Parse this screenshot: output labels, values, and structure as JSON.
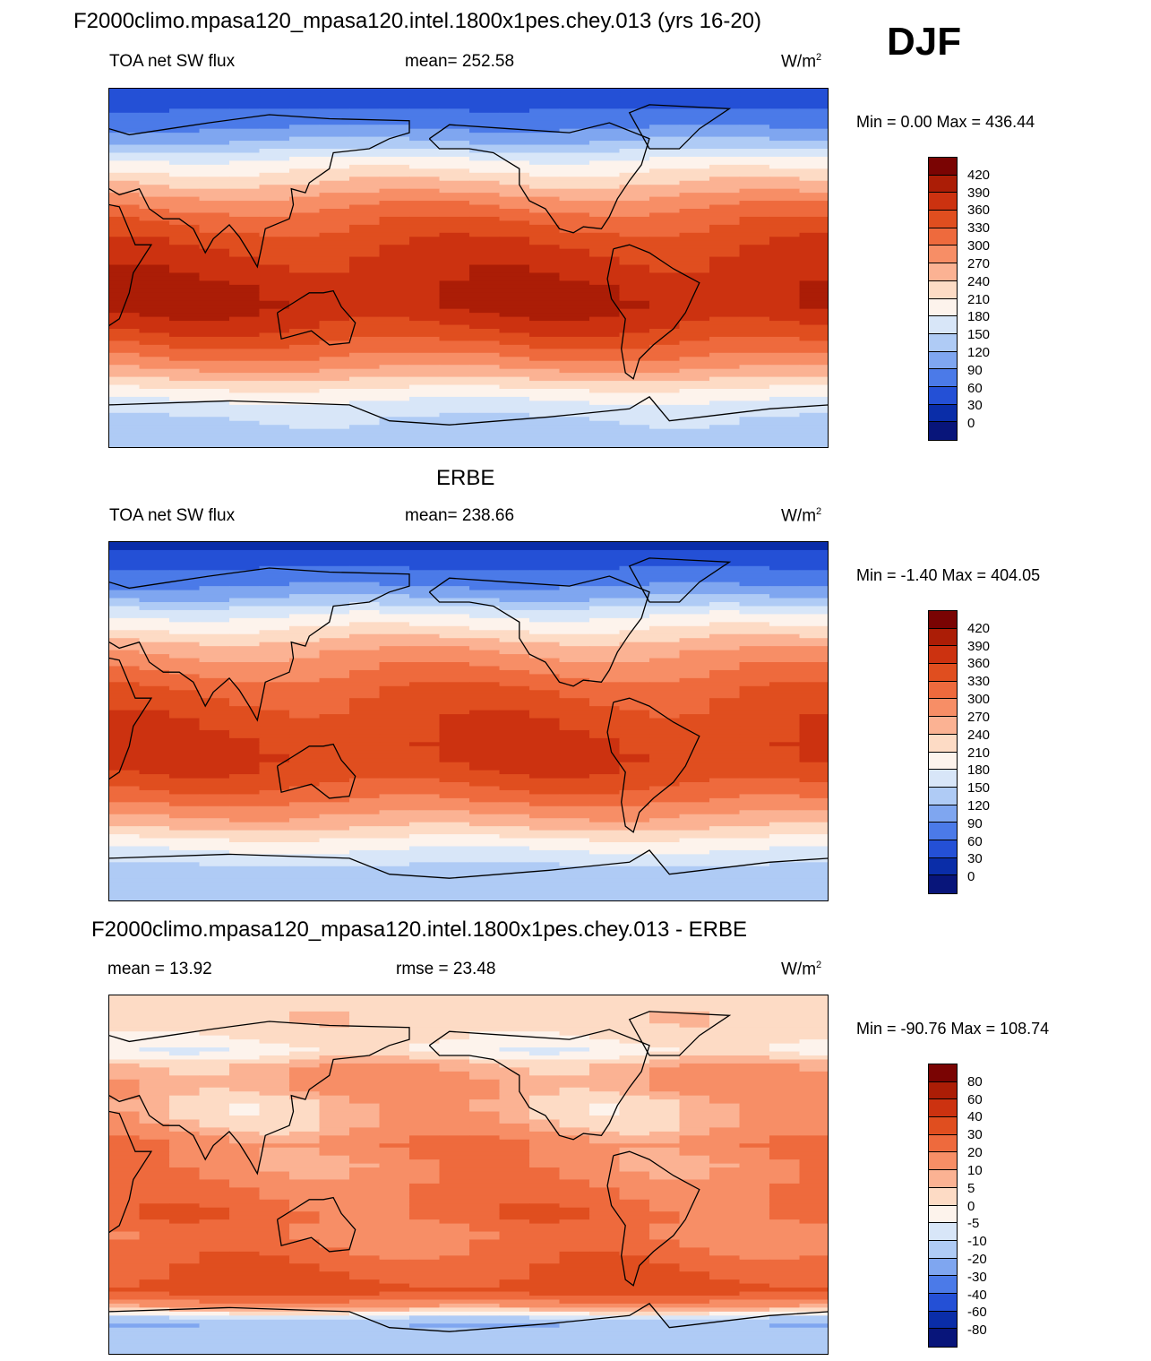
{
  "header": {
    "main_title": "F2000climo.mpasa120_mpasa120.intel.1800x1pes.chey.013 (yrs 16-20)",
    "season": "DJF"
  },
  "panels": [
    {
      "title": "",
      "left_label": "TOA net SW flux",
      "center_label": "mean= 252.58",
      "units_base": "W/m",
      "units_sup": "2",
      "minmax": "Min =   0.00 Max = 436.44"
    },
    {
      "title": "ERBE",
      "left_label": "TOA net SW flux",
      "center_label": "mean= 238.66",
      "units_base": "W/m",
      "units_sup": "2",
      "minmax": "Min =  -1.40 Max = 404.05"
    },
    {
      "title": "F2000climo.mpasa120_mpasa120.intel.1800x1pes.chey.013 - ERBE",
      "left_label": "mean =  13.92",
      "center_label": "rmse =  23.48",
      "units_base": "W/m",
      "units_sup": "2",
      "minmax": "Min = -90.76 Max = 108.74"
    }
  ],
  "chart_data": [
    {
      "type": "heatmap",
      "title": "TOA net SW flux",
      "field": "model",
      "units": "W/m2",
      "mean": 252.58,
      "min": 0.0,
      "max": 436.44,
      "levels": [
        420,
        390,
        360,
        330,
        300,
        270,
        240,
        210,
        180,
        150,
        120,
        90,
        60,
        30,
        0
      ],
      "colors": [
        "#7a0403",
        "#ab1d06",
        "#cc3210",
        "#e04e1f",
        "#ee6a3d",
        "#f78e66",
        "#fbb293",
        "#fddbc5",
        "#fdf3ec",
        "#d8e6f8",
        "#afcbf5",
        "#7fa6f0",
        "#4b7ae8",
        "#2450d6",
        "#0a2da8",
        "#08157a"
      ],
      "profile": [
        [
          90,
          30
        ],
        [
          80,
          60
        ],
        [
          70,
          90
        ],
        [
          62,
          130
        ],
        [
          55,
          180
        ],
        [
          45,
          230
        ],
        [
          35,
          280
        ],
        [
          25,
          320
        ],
        [
          15,
          350
        ],
        [
          5,
          370
        ],
        [
          -5,
          380
        ],
        [
          -12,
          395
        ],
        [
          -20,
          390
        ],
        [
          -30,
          360
        ],
        [
          -40,
          320
        ],
        [
          -50,
          270
        ],
        [
          -58,
          220
        ],
        [
          -66,
          180
        ],
        [
          -74,
          150
        ],
        [
          -90,
          140
        ]
      ]
    },
    {
      "type": "heatmap",
      "title": "TOA net SW flux (ERBE)",
      "field": "obs",
      "units": "W/m2",
      "mean": 238.66,
      "min": -1.4,
      "max": 404.05,
      "levels": [
        420,
        390,
        360,
        330,
        300,
        270,
        240,
        210,
        180,
        150,
        120,
        90,
        60,
        30,
        0
      ],
      "colors": [
        "#7a0403",
        "#ab1d06",
        "#cc3210",
        "#e04e1f",
        "#ee6a3d",
        "#f78e66",
        "#fbb293",
        "#fddbc5",
        "#fdf3ec",
        "#d8e6f8",
        "#afcbf5",
        "#7fa6f0",
        "#4b7ae8",
        "#2450d6",
        "#0a2da8",
        "#08157a"
      ],
      "profile": [
        [
          90,
          20
        ],
        [
          80,
          50
        ],
        [
          70,
          80
        ],
        [
          62,
          120
        ],
        [
          55,
          170
        ],
        [
          45,
          220
        ],
        [
          35,
          270
        ],
        [
          25,
          300
        ],
        [
          15,
          330
        ],
        [
          5,
          345
        ],
        [
          -5,
          355
        ],
        [
          -12,
          365
        ],
        [
          -20,
          360
        ],
        [
          -30,
          340
        ],
        [
          -40,
          300
        ],
        [
          -50,
          255
        ],
        [
          -58,
          210
        ],
        [
          -66,
          170
        ],
        [
          -74,
          140
        ],
        [
          -90,
          130
        ]
      ]
    },
    {
      "type": "heatmap",
      "title": "F2000climo.mpasa120_mpasa120.intel.1800x1pes.chey.013 - ERBE",
      "field": "difference",
      "units": "W/m2",
      "mean": 13.92,
      "rmse": 23.48,
      "min": -90.76,
      "max": 108.74,
      "levels": [
        80,
        60,
        40,
        30,
        20,
        10,
        5,
        0,
        -5,
        -10,
        -20,
        -30,
        -40,
        -60,
        -80
      ],
      "colors": [
        "#7a0403",
        "#ab1d06",
        "#cc3210",
        "#e04e1f",
        "#ee6a3d",
        "#f78e66",
        "#fbb293",
        "#fddbc5",
        "#fdf3ec",
        "#d8e6f8",
        "#afcbf5",
        "#7fa6f0",
        "#4b7ae8",
        "#2450d6",
        "#0a2da8",
        "#08157a"
      ],
      "profile": [
        [
          90,
          3
        ],
        [
          80,
          4
        ],
        [
          70,
          2
        ],
        [
          62,
          -3
        ],
        [
          55,
          8
        ],
        [
          45,
          12
        ],
        [
          35,
          6
        ],
        [
          25,
          8
        ],
        [
          15,
          18
        ],
        [
          5,
          14
        ],
        [
          -5,
          20
        ],
        [
          -12,
          22
        ],
        [
          -20,
          25
        ],
        [
          -30,
          18
        ],
        [
          -40,
          25
        ],
        [
          -50,
          30
        ],
        [
          -58,
          35
        ],
        [
          -66,
          10
        ],
        [
          -74,
          -20
        ],
        [
          -90,
          -10
        ]
      ]
    }
  ]
}
